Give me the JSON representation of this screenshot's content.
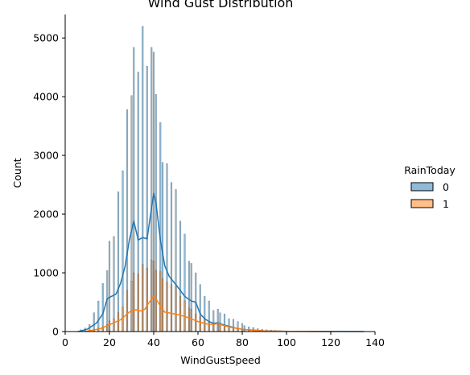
{
  "chart_data": {
    "type": "bar",
    "title": "Wind Gust Distribution",
    "xlabel": "WindGustSpeed",
    "ylabel": "Count",
    "xlim": [
      0,
      140
    ],
    "ylim": [
      0,
      5400
    ],
    "xticks": [
      0,
      20,
      40,
      60,
      80,
      100,
      120,
      140
    ],
    "yticks": [
      0,
      1000,
      2000,
      3000,
      4000,
      5000
    ],
    "grid": false,
    "legend": {
      "title": "RainToday",
      "placement": "right"
    },
    "series": [
      {
        "name": "0",
        "color": "#1f77b4",
        "bars": [
          [
            6,
            10
          ],
          [
            7,
            30
          ],
          [
            9,
            60
          ],
          [
            11,
            120
          ],
          [
            13,
            320
          ],
          [
            15,
            520
          ],
          [
            17,
            820
          ],
          [
            19,
            1040
          ],
          [
            20,
            1540
          ],
          [
            22,
            1620
          ],
          [
            24,
            2380
          ],
          [
            26,
            2740
          ],
          [
            28,
            3780
          ],
          [
            30,
            4020
          ],
          [
            31,
            4840
          ],
          [
            33,
            4420
          ],
          [
            35,
            5200
          ],
          [
            37,
            4520
          ],
          [
            39,
            4840
          ],
          [
            40,
            4760
          ],
          [
            41,
            4040
          ],
          [
            43,
            3560
          ],
          [
            44,
            2880
          ],
          [
            46,
            2860
          ],
          [
            48,
            2540
          ],
          [
            50,
            2420
          ],
          [
            52,
            1880
          ],
          [
            54,
            1660
          ],
          [
            56,
            1200
          ],
          [
            57,
            1160
          ],
          [
            59,
            1000
          ],
          [
            61,
            800
          ],
          [
            63,
            600
          ],
          [
            65,
            520
          ],
          [
            67,
            360
          ],
          [
            69,
            380
          ],
          [
            70,
            320
          ],
          [
            72,
            300
          ],
          [
            74,
            220
          ],
          [
            76,
            210
          ],
          [
            78,
            170
          ],
          [
            80,
            140
          ],
          [
            81,
            100
          ],
          [
            83,
            80
          ],
          [
            85,
            70
          ],
          [
            87,
            50
          ],
          [
            89,
            40
          ],
          [
            91,
            30
          ],
          [
            93,
            25
          ],
          [
            95,
            20
          ],
          [
            97,
            15
          ],
          [
            100,
            12
          ],
          [
            104,
            10
          ],
          [
            108,
            8
          ],
          [
            112,
            6
          ],
          [
            116,
            5
          ],
          [
            120,
            4
          ],
          [
            125,
            3
          ],
          [
            130,
            2
          ],
          [
            135,
            2
          ]
        ],
        "kde": [
          [
            6,
            0
          ],
          [
            10,
            40
          ],
          [
            14,
            140
          ],
          [
            17,
            300
          ],
          [
            19,
            560
          ],
          [
            21,
            600
          ],
          [
            23,
            640
          ],
          [
            25,
            820
          ],
          [
            27,
            1100
          ],
          [
            29,
            1560
          ],
          [
            31,
            1880
          ],
          [
            33,
            1560
          ],
          [
            35,
            1600
          ],
          [
            37,
            1580
          ],
          [
            39,
            2100
          ],
          [
            40,
            2350
          ],
          [
            41,
            2200
          ],
          [
            43,
            1560
          ],
          [
            45,
            1120
          ],
          [
            47,
            940
          ],
          [
            50,
            800
          ],
          [
            54,
            600
          ],
          [
            57,
            520
          ],
          [
            59,
            500
          ],
          [
            61,
            300
          ],
          [
            63,
            220
          ],
          [
            65,
            170
          ],
          [
            67,
            140
          ],
          [
            69,
            150
          ],
          [
            71,
            120
          ],
          [
            74,
            90
          ],
          [
            78,
            50
          ],
          [
            82,
            30
          ],
          [
            86,
            20
          ],
          [
            90,
            10
          ],
          [
            100,
            4
          ],
          [
            115,
            2
          ],
          [
            135,
            0
          ]
        ]
      },
      {
        "name": "1",
        "color": "#ff7f0e",
        "bars": [
          [
            9,
            10
          ],
          [
            11,
            20
          ],
          [
            13,
            40
          ],
          [
            15,
            60
          ],
          [
            17,
            80
          ],
          [
            19,
            120
          ],
          [
            20,
            180
          ],
          [
            22,
            220
          ],
          [
            24,
            320
          ],
          [
            26,
            420
          ],
          [
            28,
            700
          ],
          [
            30,
            860
          ],
          [
            31,
            1000
          ],
          [
            33,
            980
          ],
          [
            35,
            1140
          ],
          [
            37,
            1080
          ],
          [
            39,
            1220
          ],
          [
            40,
            1200
          ],
          [
            41,
            1040
          ],
          [
            43,
            1020
          ],
          [
            44,
            900
          ],
          [
            46,
            840
          ],
          [
            48,
            800
          ],
          [
            50,
            760
          ],
          [
            52,
            600
          ],
          [
            54,
            520
          ],
          [
            56,
            400
          ],
          [
            57,
            380
          ],
          [
            59,
            300
          ],
          [
            61,
            260
          ],
          [
            63,
            200
          ],
          [
            65,
            160
          ],
          [
            67,
            120
          ],
          [
            69,
            120
          ],
          [
            70,
            110
          ],
          [
            72,
            100
          ],
          [
            74,
            80
          ],
          [
            76,
            70
          ],
          [
            78,
            60
          ],
          [
            80,
            45
          ],
          [
            81,
            35
          ],
          [
            83,
            30
          ],
          [
            85,
            25
          ],
          [
            87,
            20
          ],
          [
            89,
            15
          ],
          [
            91,
            12
          ],
          [
            93,
            10
          ],
          [
            95,
            8
          ]
        ],
        "kde": [
          [
            9,
            0
          ],
          [
            12,
            20
          ],
          [
            16,
            50
          ],
          [
            19,
            100
          ],
          [
            22,
            150
          ],
          [
            25,
            200
          ],
          [
            28,
            300
          ],
          [
            30,
            360
          ],
          [
            32,
            370
          ],
          [
            34,
            350
          ],
          [
            36,
            380
          ],
          [
            38,
            500
          ],
          [
            40,
            600
          ],
          [
            41,
            560
          ],
          [
            43,
            430
          ],
          [
            45,
            330
          ],
          [
            48,
            310
          ],
          [
            52,
            280
          ],
          [
            56,
            230
          ],
          [
            60,
            170
          ],
          [
            64,
            130
          ],
          [
            67,
            120
          ],
          [
            69,
            140
          ],
          [
            71,
            110
          ],
          [
            75,
            70
          ],
          [
            80,
            40
          ],
          [
            85,
            20
          ],
          [
            90,
            10
          ],
          [
            100,
            4
          ],
          [
            110,
            1
          ],
          [
            120,
            0
          ]
        ]
      }
    ]
  }
}
